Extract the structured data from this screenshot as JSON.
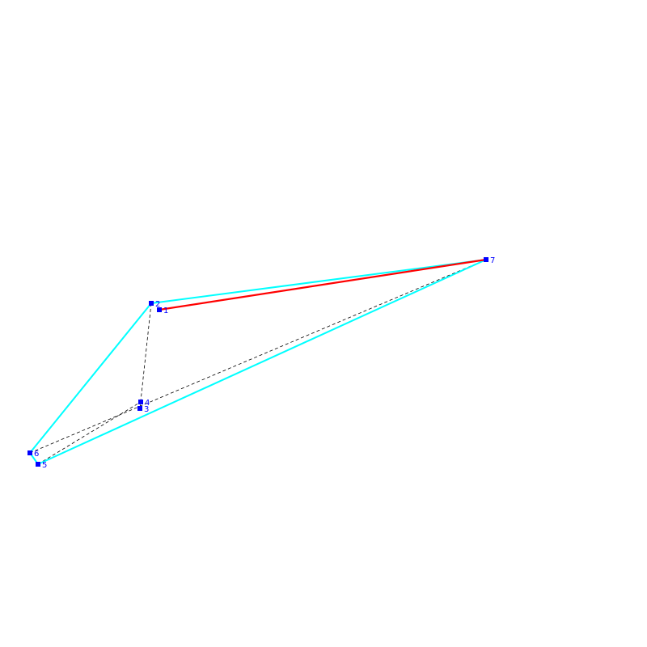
{
  "graph": {
    "colors": {
      "background": "#ffffff",
      "node_fill": "#0000ff",
      "label_text": "#0000ff",
      "hull_edge": "#00ffff",
      "highlight_edge": "#ff0000",
      "internal_edge": "#000000"
    },
    "nodes": [
      {
        "id": "1",
        "label": "1"
      },
      {
        "id": "2",
        "label": "2"
      },
      {
        "id": "3",
        "label": "3"
      },
      {
        "id": "4",
        "label": "4"
      },
      {
        "id": "5",
        "label": "5"
      },
      {
        "id": "6",
        "label": "6"
      },
      {
        "id": "7",
        "label": "7"
      }
    ],
    "edges": [
      {
        "from": "2",
        "to": "7",
        "style": "hull"
      },
      {
        "from": "7",
        "to": "5",
        "style": "hull"
      },
      {
        "from": "5",
        "to": "6",
        "style": "hull"
      },
      {
        "from": "6",
        "to": "2",
        "style": "hull"
      },
      {
        "from": "1",
        "to": "7",
        "style": "highlight"
      },
      {
        "from": "2",
        "to": "3",
        "style": "internal"
      },
      {
        "from": "6",
        "to": "7",
        "style": "internal"
      },
      {
        "from": "5",
        "to": "4",
        "style": "internal"
      }
    ]
  }
}
